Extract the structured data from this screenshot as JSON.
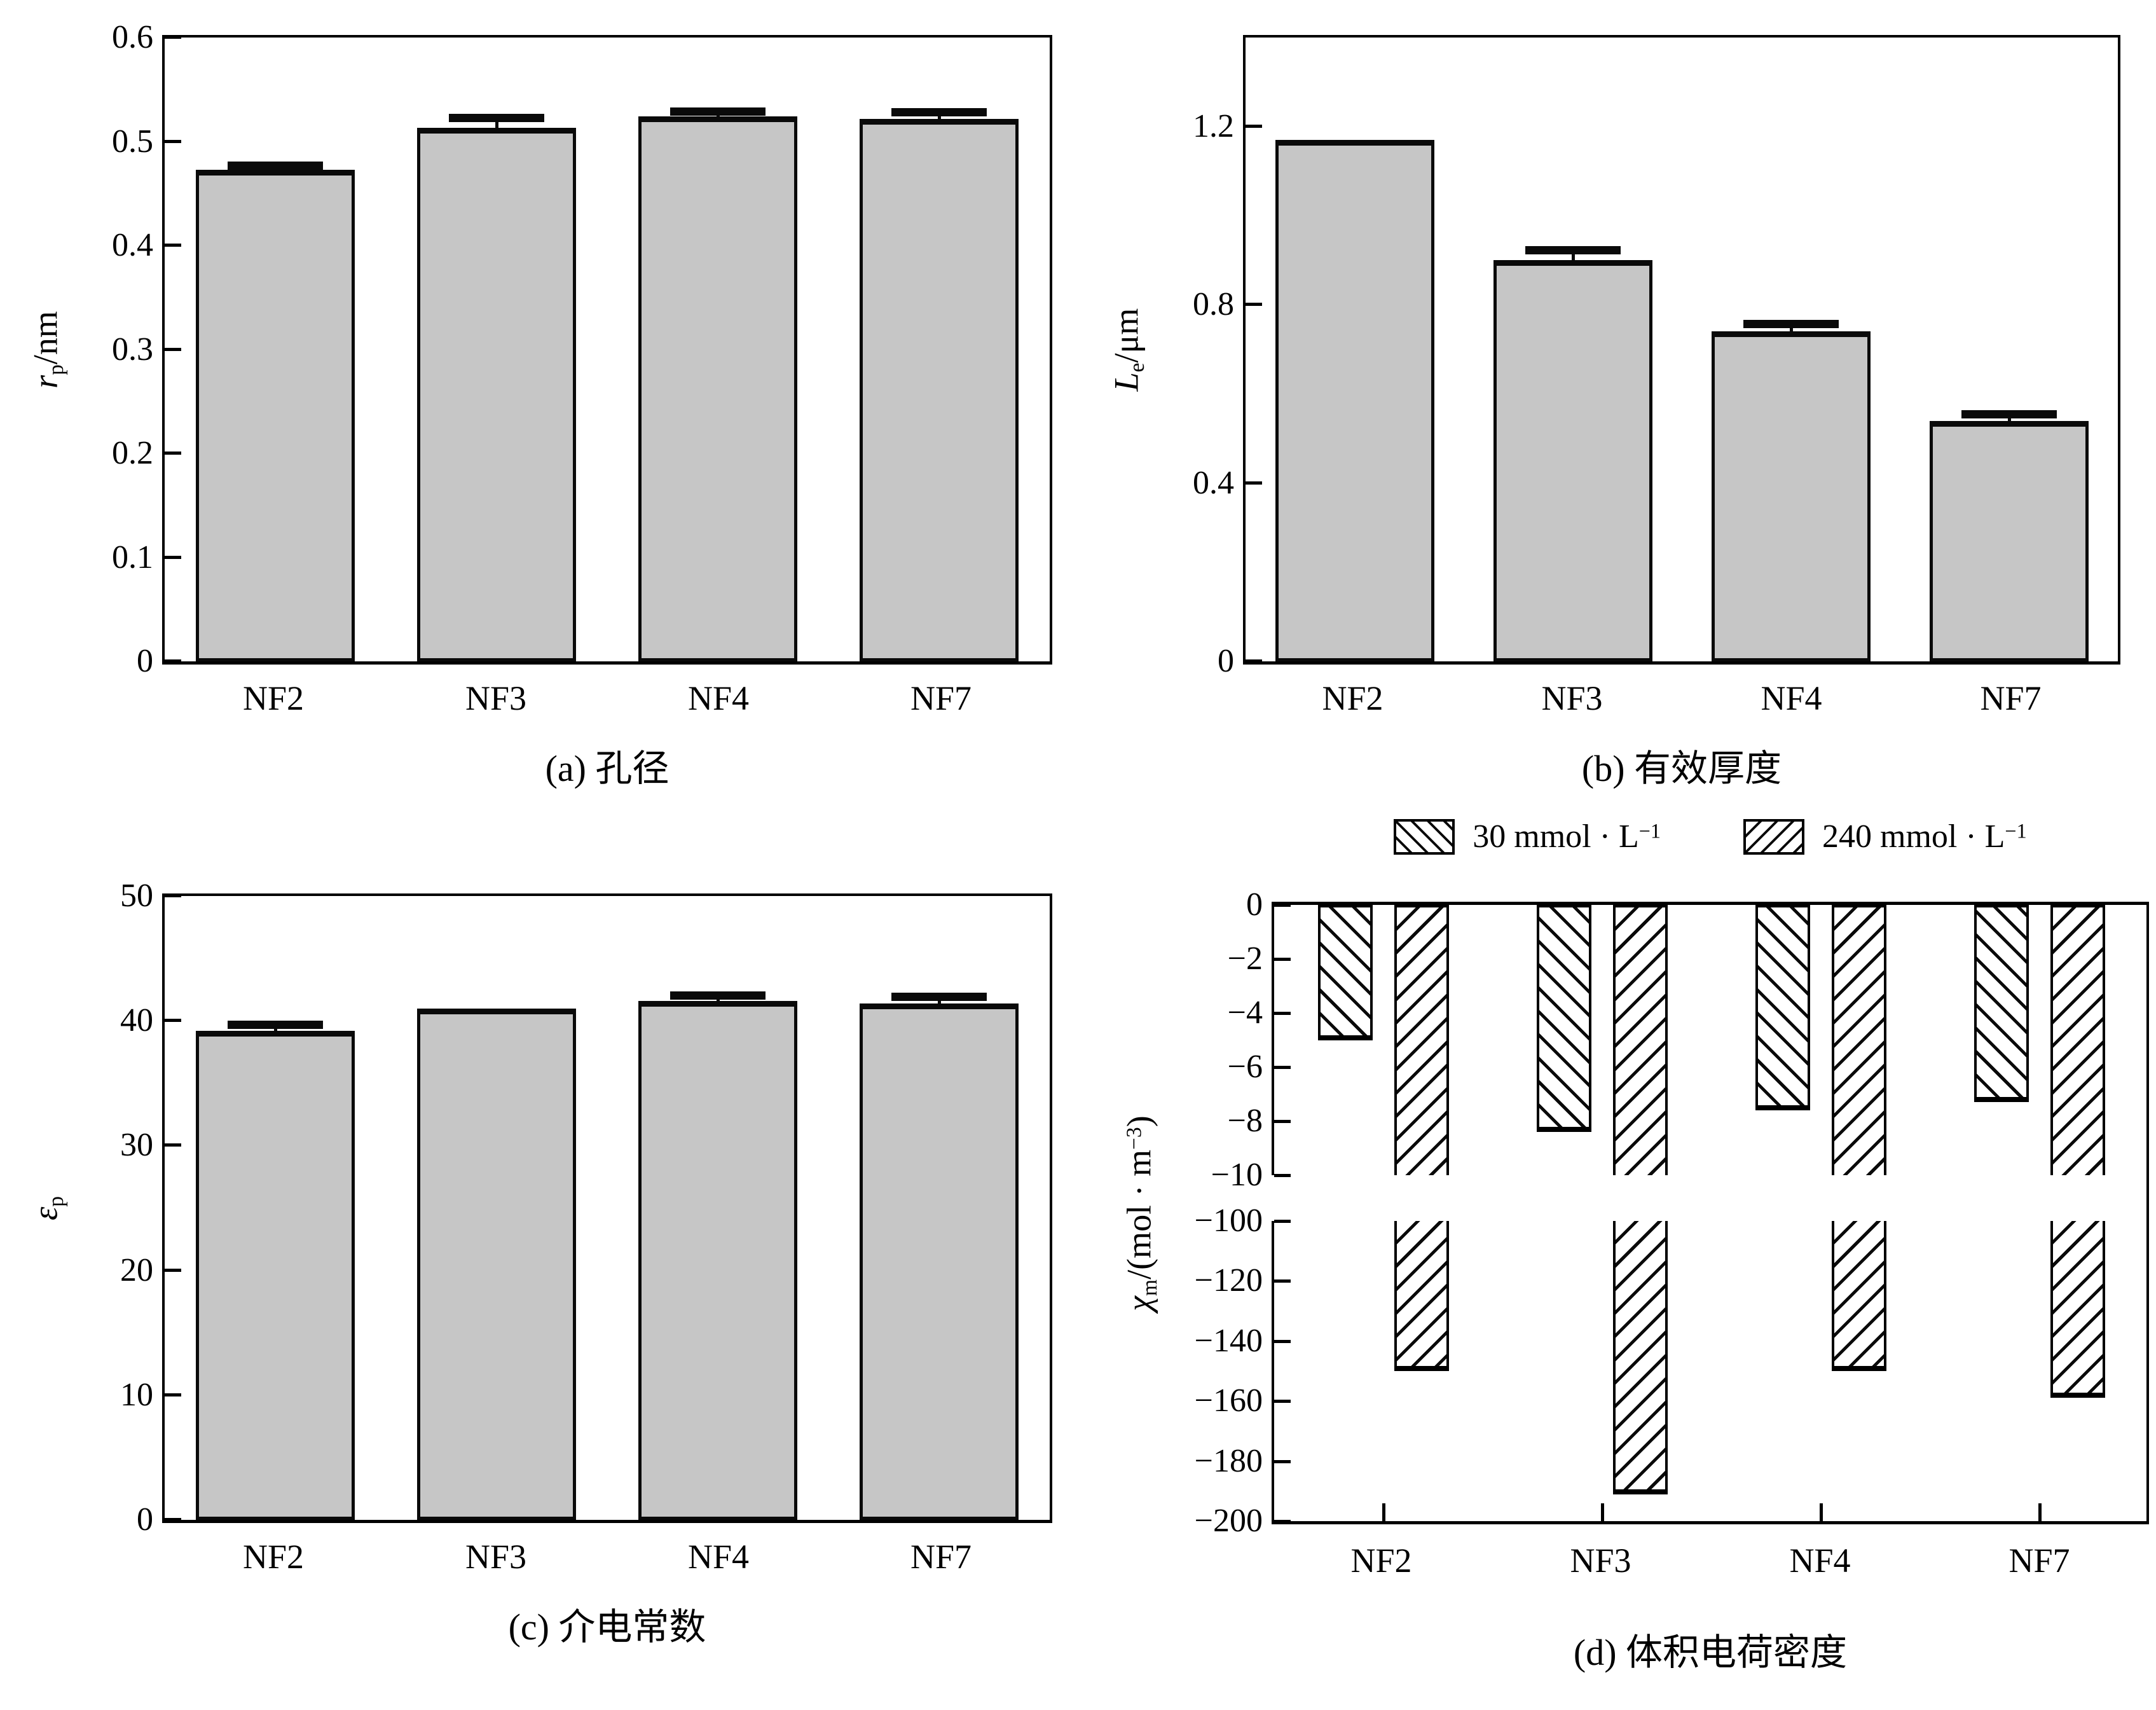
{
  "colors": {
    "bar_fill": "#c6c6c6",
    "ink": "#000000",
    "background": "#ffffff"
  },
  "chart_data": [
    {
      "type": "bar",
      "panel": "a",
      "title": "(a) 孔径",
      "ylabel": "rp/nm",
      "ylabel_parts": [
        {
          "t": "r",
          "s": "i"
        },
        {
          "t": "p",
          "s": "sub"
        },
        {
          "t": "/nm",
          "s": "n"
        }
      ],
      "categories": [
        "NF2",
        "NF3",
        "NF4",
        "NF7"
      ],
      "values": [
        0.473,
        0.513,
        0.524,
        0.522
      ],
      "errors": [
        0.003,
        0.009,
        0.004,
        0.005
      ],
      "ytick_labels": [
        "0",
        "0.1",
        "0.2",
        "0.3",
        "0.4",
        "0.5",
        "0.6"
      ],
      "ytick_values": [
        0,
        0.1,
        0.2,
        0.3,
        0.4,
        0.5,
        0.6
      ],
      "ylim": [
        0,
        0.6
      ],
      "grid": false,
      "legend_position": "none"
    },
    {
      "type": "bar",
      "panel": "b",
      "title": "(b) 有效厚度",
      "ylabel": "Le/μm",
      "ylabel_parts": [
        {
          "t": "L",
          "s": "i"
        },
        {
          "t": "e",
          "s": "sub"
        },
        {
          "t": "/μm",
          "s": "n"
        }
      ],
      "categories": [
        "NF2",
        "NF3",
        "NF4",
        "NF7"
      ],
      "values": [
        1.17,
        0.9,
        0.74,
        0.54
      ],
      "errors": [
        0,
        0.02,
        0.015,
        0.012
      ],
      "ytick_labels": [
        "0",
        "0.4",
        "0.8",
        "1.2"
      ],
      "ytick_values": [
        0,
        0.4,
        0.8,
        1.2
      ],
      "ylim": [
        0,
        1.4
      ],
      "grid": false,
      "legend_position": "none"
    },
    {
      "type": "bar",
      "panel": "c",
      "title": "(c) 介电常数",
      "ylabel": "εp",
      "ylabel_parts": [
        {
          "t": "ε",
          "s": "i"
        },
        {
          "t": "p",
          "s": "sub"
        }
      ],
      "categories": [
        "NF2",
        "NF3",
        "NF4",
        "NF7"
      ],
      "values": [
        39.2,
        41.0,
        41.6,
        41.4
      ],
      "errors": [
        0.4,
        0,
        0.35,
        0.45
      ],
      "ytick_labels": [
        "0",
        "10",
        "20",
        "30",
        "40",
        "50"
      ],
      "ytick_values": [
        0,
        10,
        20,
        30,
        40,
        50
      ],
      "ylim": [
        0,
        50
      ],
      "grid": false,
      "legend_position": "none"
    },
    {
      "type": "bar",
      "panel": "d",
      "broken_axis": true,
      "title": "(d) 体积电荷密度",
      "ylabel": "χm/(mol·m−3)",
      "ylabel_parts": [
        {
          "t": "χ",
          "s": "i"
        },
        {
          "t": "m",
          "s": "sub"
        },
        {
          "t": "/(mol · m",
          "s": "n"
        },
        {
          "t": "−3",
          "s": "sup"
        },
        {
          "t": ")",
          "s": "n"
        }
      ],
      "categories": [
        "NF2",
        "NF3",
        "NF4",
        "NF7"
      ],
      "series": [
        {
          "name": "30 mmol·L−1",
          "label_parts": [
            {
              "t": "30 mmol · L",
              "s": "n"
            },
            {
              "t": "−1",
              "s": "sup"
            }
          ],
          "hatch": "back",
          "values": [
            -5.0,
            -8.4,
            -7.6,
            -7.3
          ]
        },
        {
          "name": "240 mmol·L−1",
          "label_parts": [
            {
              "t": "240 mmol · L",
              "s": "n"
            },
            {
              "t": "−1",
              "s": "sup"
            }
          ],
          "hatch": "fwd",
          "values": [
            -150,
            -191,
            -150,
            -159
          ]
        }
      ],
      "upper": {
        "ylim": [
          0,
          -10
        ],
        "ytick_labels": [
          "0",
          "−2",
          "−4",
          "−6",
          "−8",
          "−10"
        ],
        "ytick_values": [
          0,
          -2,
          -4,
          -6,
          -8,
          -10
        ]
      },
      "lower": {
        "ylim": [
          -100,
          -200
        ],
        "ytick_labels": [
          "−100",
          "−120",
          "−140",
          "−160",
          "−180",
          "−200"
        ],
        "ytick_values": [
          -100,
          -120,
          -140,
          -160,
          -180,
          -200
        ]
      },
      "grid": false,
      "legend_position": "top"
    }
  ]
}
